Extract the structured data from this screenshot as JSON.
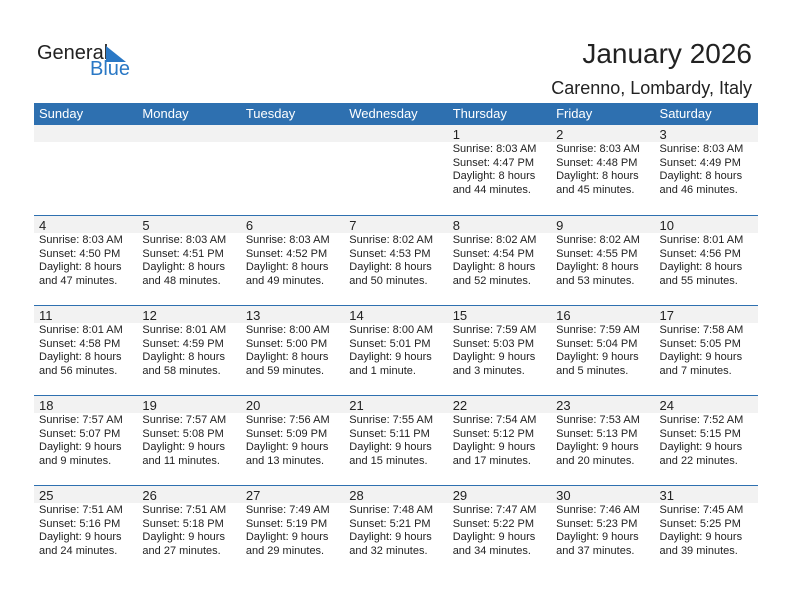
{
  "logo": {
    "text1": "General",
    "text2": "Blue"
  },
  "title": "January 2026",
  "location": "Carenno, Lombardy, Italy",
  "weekdays": [
    "Sunday",
    "Monday",
    "Tuesday",
    "Wednesday",
    "Thursday",
    "Friday",
    "Saturday"
  ],
  "weeks": [
    [
      null,
      null,
      null,
      null,
      {
        "day": "1",
        "sunrise": "Sunrise: 8:03 AM",
        "sunset": "Sunset: 4:47 PM",
        "daylight1": "Daylight: 8 hours",
        "daylight2": "and 44 minutes."
      },
      {
        "day": "2",
        "sunrise": "Sunrise: 8:03 AM",
        "sunset": "Sunset: 4:48 PM",
        "daylight1": "Daylight: 8 hours",
        "daylight2": "and 45 minutes."
      },
      {
        "day": "3",
        "sunrise": "Sunrise: 8:03 AM",
        "sunset": "Sunset: 4:49 PM",
        "daylight1": "Daylight: 8 hours",
        "daylight2": "and 46 minutes."
      }
    ],
    [
      {
        "day": "4",
        "sunrise": "Sunrise: 8:03 AM",
        "sunset": "Sunset: 4:50 PM",
        "daylight1": "Daylight: 8 hours",
        "daylight2": "and 47 minutes."
      },
      {
        "day": "5",
        "sunrise": "Sunrise: 8:03 AM",
        "sunset": "Sunset: 4:51 PM",
        "daylight1": "Daylight: 8 hours",
        "daylight2": "and 48 minutes."
      },
      {
        "day": "6",
        "sunrise": "Sunrise: 8:03 AM",
        "sunset": "Sunset: 4:52 PM",
        "daylight1": "Daylight: 8 hours",
        "daylight2": "and 49 minutes."
      },
      {
        "day": "7",
        "sunrise": "Sunrise: 8:02 AM",
        "sunset": "Sunset: 4:53 PM",
        "daylight1": "Daylight: 8 hours",
        "daylight2": "and 50 minutes."
      },
      {
        "day": "8",
        "sunrise": "Sunrise: 8:02 AM",
        "sunset": "Sunset: 4:54 PM",
        "daylight1": "Daylight: 8 hours",
        "daylight2": "and 52 minutes."
      },
      {
        "day": "9",
        "sunrise": "Sunrise: 8:02 AM",
        "sunset": "Sunset: 4:55 PM",
        "daylight1": "Daylight: 8 hours",
        "daylight2": "and 53 minutes."
      },
      {
        "day": "10",
        "sunrise": "Sunrise: 8:01 AM",
        "sunset": "Sunset: 4:56 PM",
        "daylight1": "Daylight: 8 hours",
        "daylight2": "and 55 minutes."
      }
    ],
    [
      {
        "day": "11",
        "sunrise": "Sunrise: 8:01 AM",
        "sunset": "Sunset: 4:58 PM",
        "daylight1": "Daylight: 8 hours",
        "daylight2": "and 56 minutes."
      },
      {
        "day": "12",
        "sunrise": "Sunrise: 8:01 AM",
        "sunset": "Sunset: 4:59 PM",
        "daylight1": "Daylight: 8 hours",
        "daylight2": "and 58 minutes."
      },
      {
        "day": "13",
        "sunrise": "Sunrise: 8:00 AM",
        "sunset": "Sunset: 5:00 PM",
        "daylight1": "Daylight: 8 hours",
        "daylight2": "and 59 minutes."
      },
      {
        "day": "14",
        "sunrise": "Sunrise: 8:00 AM",
        "sunset": "Sunset: 5:01 PM",
        "daylight1": "Daylight: 9 hours",
        "daylight2": "and 1 minute."
      },
      {
        "day": "15",
        "sunrise": "Sunrise: 7:59 AM",
        "sunset": "Sunset: 5:03 PM",
        "daylight1": "Daylight: 9 hours",
        "daylight2": "and 3 minutes."
      },
      {
        "day": "16",
        "sunrise": "Sunrise: 7:59 AM",
        "sunset": "Sunset: 5:04 PM",
        "daylight1": "Daylight: 9 hours",
        "daylight2": "and 5 minutes."
      },
      {
        "day": "17",
        "sunrise": "Sunrise: 7:58 AM",
        "sunset": "Sunset: 5:05 PM",
        "daylight1": "Daylight: 9 hours",
        "daylight2": "and 7 minutes."
      }
    ],
    [
      {
        "day": "18",
        "sunrise": "Sunrise: 7:57 AM",
        "sunset": "Sunset: 5:07 PM",
        "daylight1": "Daylight: 9 hours",
        "daylight2": "and 9 minutes."
      },
      {
        "day": "19",
        "sunrise": "Sunrise: 7:57 AM",
        "sunset": "Sunset: 5:08 PM",
        "daylight1": "Daylight: 9 hours",
        "daylight2": "and 11 minutes."
      },
      {
        "day": "20",
        "sunrise": "Sunrise: 7:56 AM",
        "sunset": "Sunset: 5:09 PM",
        "daylight1": "Daylight: 9 hours",
        "daylight2": "and 13 minutes."
      },
      {
        "day": "21",
        "sunrise": "Sunrise: 7:55 AM",
        "sunset": "Sunset: 5:11 PM",
        "daylight1": "Daylight: 9 hours",
        "daylight2": "and 15 minutes."
      },
      {
        "day": "22",
        "sunrise": "Sunrise: 7:54 AM",
        "sunset": "Sunset: 5:12 PM",
        "daylight1": "Daylight: 9 hours",
        "daylight2": "and 17 minutes."
      },
      {
        "day": "23",
        "sunrise": "Sunrise: 7:53 AM",
        "sunset": "Sunset: 5:13 PM",
        "daylight1": "Daylight: 9 hours",
        "daylight2": "and 20 minutes."
      },
      {
        "day": "24",
        "sunrise": "Sunrise: 7:52 AM",
        "sunset": "Sunset: 5:15 PM",
        "daylight1": "Daylight: 9 hours",
        "daylight2": "and 22 minutes."
      }
    ],
    [
      {
        "day": "25",
        "sunrise": "Sunrise: 7:51 AM",
        "sunset": "Sunset: 5:16 PM",
        "daylight1": "Daylight: 9 hours",
        "daylight2": "and 24 minutes."
      },
      {
        "day": "26",
        "sunrise": "Sunrise: 7:51 AM",
        "sunset": "Sunset: 5:18 PM",
        "daylight1": "Daylight: 9 hours",
        "daylight2": "and 27 minutes."
      },
      {
        "day": "27",
        "sunrise": "Sunrise: 7:49 AM",
        "sunset": "Sunset: 5:19 PM",
        "daylight1": "Daylight: 9 hours",
        "daylight2": "and 29 minutes."
      },
      {
        "day": "28",
        "sunrise": "Sunrise: 7:48 AM",
        "sunset": "Sunset: 5:21 PM",
        "daylight1": "Daylight: 9 hours",
        "daylight2": "and 32 minutes."
      },
      {
        "day": "29",
        "sunrise": "Sunrise: 7:47 AM",
        "sunset": "Sunset: 5:22 PM",
        "daylight1": "Daylight: 9 hours",
        "daylight2": "and 34 minutes."
      },
      {
        "day": "30",
        "sunrise": "Sunrise: 7:46 AM",
        "sunset": "Sunset: 5:23 PM",
        "daylight1": "Daylight: 9 hours",
        "daylight2": "and 37 minutes."
      },
      {
        "day": "31",
        "sunrise": "Sunrise: 7:45 AM",
        "sunset": "Sunset: 5:25 PM",
        "daylight1": "Daylight: 9 hours",
        "daylight2": "and 39 minutes."
      }
    ]
  ],
  "colors": {
    "header": "#2e70b0",
    "band": "#f2f2f2",
    "logo_blue": "#2a78c5"
  }
}
